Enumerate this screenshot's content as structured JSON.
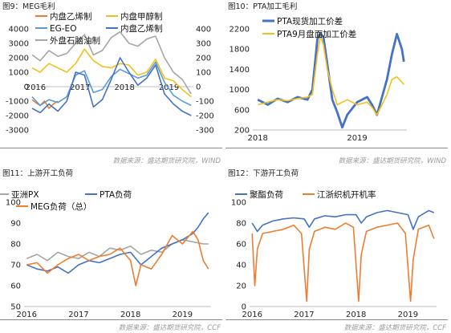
{
  "panels": [
    {
      "title": "图9：MEG毛利",
      "source": "数据来源：盛达期货研究院，WIND",
      "chart_data": {
        "type": "line",
        "title": "图9：MEG毛利",
        "x_ticks": [
          "2016",
          "2017",
          "2018",
          "2019"
        ],
        "x_range": [
          2015.92,
          2019.55
        ],
        "ylim": [
          -3000,
          4000
        ],
        "y_ticks": [
          -3000,
          -2000,
          -1000,
          0,
          1000,
          2000,
          3000,
          4000
        ],
        "y2lim": [
          -300,
          400
        ],
        "y2_ticks": [
          -300,
          -200,
          -100,
          0,
          100,
          200,
          300,
          400
        ],
        "grid": false,
        "legend": "top",
        "series": [
          {
            "name": "内盘乙烯制",
            "axis": "left",
            "color": "#ED7D31",
            "x": [
              2015.92,
              2016.0,
              2016.1,
              2016.2,
              2016.3,
              2016.4,
              2016.5
            ],
            "y": [
              -900,
              -1100,
              -1300,
              -1000,
              -1500,
              -1200,
              -1000
            ]
          },
          {
            "name": "内盘甲醇制",
            "axis": "left",
            "color": "#F2C01E",
            "x": [
              2015.92,
              2016.1,
              2016.3,
              2016.5,
              2016.7,
              2016.9,
              2017.1,
              2017.3,
              2017.5,
              2017.7,
              2017.9,
              2018.1,
              2018.3,
              2018.5,
              2018.7,
              2018.9,
              2019.1,
              2019.3,
              2019.5
            ],
            "y": [
              1300,
              1000,
              1600,
              1300,
              1000,
              1600,
              2600,
              1800,
              1400,
              1300,
              1600,
              1500,
              800,
              1000,
              1900,
              600,
              400,
              -200,
              -700
            ]
          },
          {
            "name": "EG-EO",
            "axis": "left",
            "color": "#5B9BD5",
            "x": [
              2015.92,
              2016.1,
              2016.3,
              2016.5,
              2016.7,
              2016.9,
              2017.1,
              2017.3,
              2017.5,
              2017.7,
              2017.9,
              2018.1,
              2018.3,
              2018.5,
              2018.7,
              2018.9,
              2019.1,
              2019.3,
              2019.5
            ],
            "y": [
              -700,
              -1300,
              -900,
              -1100,
              -700,
              800,
              1100,
              -400,
              -200,
              700,
              1200,
              900,
              600,
              800,
              1700,
              300,
              -600,
              -1000,
              -1300
            ]
          },
          {
            "name": "内盘乙烯制",
            "axis": "right",
            "color": "#4472C4",
            "x": [
              2015.92,
              2016.1,
              2016.3,
              2016.5,
              2016.7,
              2016.9,
              2017.1,
              2017.3,
              2017.5,
              2017.7,
              2017.9,
              2018.1,
              2018.3,
              2018.5,
              2018.7,
              2018.9,
              2019.1,
              2019.3,
              2019.5
            ],
            "y": [
              -150,
              -180,
              -120,
              -170,
              -100,
              100,
              80,
              -140,
              -90,
              50,
              200,
              100,
              10,
              60,
              150,
              -50,
              -120,
              -170,
              -200
            ]
          },
          {
            "name": "外盘石脑油制",
            "axis": "right",
            "color": "#A5A5A5",
            "x": [
              2015.92,
              2016.1,
              2016.3,
              2016.5,
              2016.7,
              2016.9,
              2017.1,
              2017.3,
              2017.5,
              2017.7,
              2017.9,
              2018.1,
              2018.3,
              2018.5,
              2018.7,
              2018.9,
              2019.1,
              2019.3,
              2019.5
            ],
            "y": [
              220,
              180,
              250,
              210,
              230,
              300,
              360,
              220,
              250,
              340,
              380,
              300,
              280,
              330,
              350,
              200,
              100,
              50,
              -50
            ]
          }
        ]
      }
    },
    {
      "title": "图10：PTA加工毛利",
      "source": "数据来源：盛达期货研究院，WIND",
      "chart_data": {
        "type": "line",
        "title": "图10：PTA加工毛利",
        "x_ticks": [
          "2018",
          "2019"
        ],
        "x_range": [
          2017.95,
          2019.5
        ],
        "ylim": [
          200,
          2200
        ],
        "y_ticks": [
          200,
          600,
          1000,
          1400,
          1800,
          2200
        ],
        "grid": false,
        "legend": "top",
        "series": [
          {
            "name": "PTA现货加工价差",
            "color": "#4472C4",
            "x": [
              2018.0,
              2018.1,
              2018.2,
              2018.3,
              2018.4,
              2018.5,
              2018.55,
              2018.6,
              2018.63,
              2018.66,
              2018.7,
              2018.75,
              2018.8,
              2018.85,
              2018.9,
              2019.0,
              2019.1,
              2019.15,
              2019.2,
              2019.3,
              2019.35,
              2019.4,
              2019.45,
              2019.47
            ],
            "y": [
              800,
              700,
              820,
              750,
              850,
              800,
              1000,
              2000,
              2100,
              2050,
              1500,
              800,
              550,
              250,
              500,
              750,
              850,
              700,
              500,
              1200,
              1700,
              2100,
              1800,
              1550
            ]
          },
          {
            "name": "PTA9月盘面加工价差",
            "color": "#F2C01E",
            "x": [
              2018.0,
              2018.1,
              2018.2,
              2018.3,
              2018.4,
              2018.5,
              2018.55,
              2018.6,
              2018.63,
              2018.66,
              2018.7,
              2018.75,
              2018.8,
              2018.85,
              2018.9,
              2019.0,
              2019.1,
              2019.15,
              2019.2,
              2019.3,
              2019.35,
              2019.4,
              2019.45,
              2019.47
            ],
            "y": [
              700,
              750,
              800,
              780,
              820,
              850,
              900,
              1700,
              2050,
              1900,
              1400,
              1000,
              700,
              750,
              800,
              700,
              750,
              650,
              500,
              900,
              1200,
              1250,
              1150,
              1100
            ]
          }
        ]
      }
    },
    {
      "title": "图11：上游开工负荷",
      "source": "数据来源：盛达期货研究院，CCF",
      "chart_data": {
        "type": "line",
        "title": "图11：上游开工负荷",
        "x_ticks": [
          "2016",
          "2017",
          "2018",
          "2019"
        ],
        "x_range": [
          2015.95,
          2019.55
        ],
        "ylim": [
          50,
          100
        ],
        "y_ticks": [
          50,
          60,
          70,
          80,
          90,
          100
        ],
        "grid": false,
        "legend": "top",
        "series": [
          {
            "name": "亚洲PX",
            "color": "#A5A5A5",
            "x": [
              2016.0,
              2016.2,
              2016.4,
              2016.6,
              2016.8,
              2017.0,
              2017.2,
              2017.4,
              2017.6,
              2017.8,
              2018.0,
              2018.2,
              2018.4,
              2018.6,
              2018.8,
              2019.0,
              2019.2,
              2019.4,
              2019.5
            ],
            "y": [
              73,
              75,
              72,
              76,
              74,
              73,
              76,
              74,
              78,
              77,
              79,
              75,
              77,
              76,
              80,
              82,
              81,
              80,
              80
            ]
          },
          {
            "name": "PTA负荷",
            "color": "#4472C4",
            "x": [
              2016.0,
              2016.2,
              2016.4,
              2016.6,
              2016.8,
              2017.0,
              2017.2,
              2017.4,
              2017.6,
              2017.8,
              2018.0,
              2018.2,
              2018.4,
              2018.6,
              2018.8,
              2019.0,
              2019.2,
              2019.3,
              2019.4,
              2019.5
            ],
            "y": [
              70,
              68,
              67,
              69,
              66,
              70,
              72,
              71,
              73,
              75,
              76,
              70,
              74,
              78,
              80,
              82,
              85,
              88,
              92,
              95
            ]
          },
          {
            "name": "MEG负荷（总）",
            "color": "#ED7D31",
            "x": [
              2016.0,
              2016.2,
              2016.4,
              2016.6,
              2016.8,
              2017.0,
              2017.2,
              2017.4,
              2017.6,
              2017.8,
              2018.0,
              2018.1,
              2018.2,
              2018.4,
              2018.6,
              2018.8,
              2019.0,
              2019.2,
              2019.3,
              2019.4,
              2019.5
            ],
            "y": [
              70,
              71,
              66,
              70,
              73,
              75,
              72,
              74,
              75,
              78,
              72,
              60,
              70,
              68,
              75,
              84,
              80,
              86,
              82,
              72,
              68
            ]
          }
        ]
      }
    },
    {
      "title": "图12：下游开工负荷",
      "source": "数据来源：盛达期货研究院，CCF",
      "chart_data": {
        "type": "line",
        "title": "图12：下游开工负荷",
        "x_ticks": [
          "2016",
          "2017",
          "2018",
          "2019"
        ],
        "x_range": [
          2015.95,
          2019.55
        ],
        "ylim": [
          0,
          100
        ],
        "y_ticks": [
          0,
          20,
          40,
          60,
          80,
          100
        ],
        "grid": false,
        "legend": "top",
        "series": [
          {
            "name": "聚酯负荷",
            "color": "#4472C4",
            "x": [
              2016.0,
              2016.1,
              2016.2,
              2016.4,
              2016.6,
              2016.8,
              2017.0,
              2017.1,
              2017.2,
              2017.4,
              2017.6,
              2017.8,
              2018.0,
              2018.1,
              2018.2,
              2018.4,
              2018.6,
              2018.8,
              2019.0,
              2019.1,
              2019.2,
              2019.4,
              2019.5
            ],
            "y": [
              80,
              72,
              78,
              82,
              84,
              85,
              84,
              76,
              84,
              87,
              86,
              88,
              88,
              80,
              86,
              90,
              92,
              90,
              88,
              74,
              86,
              92,
              90
            ]
          },
          {
            "name": "江浙织机开机率",
            "color": "#ED7D31",
            "x": [
              2016.0,
              2016.05,
              2016.1,
              2016.2,
              2016.4,
              2016.6,
              2016.8,
              2016.95,
              2017.05,
              2017.1,
              2017.2,
              2017.4,
              2017.6,
              2017.8,
              2017.95,
              2018.05,
              2018.1,
              2018.2,
              2018.4,
              2018.6,
              2018.8,
              2018.95,
              2019.05,
              2019.1,
              2019.2,
              2019.4,
              2019.5
            ],
            "y": [
              70,
              20,
              55,
              70,
              72,
              74,
              78,
              70,
              5,
              55,
              72,
              76,
              74,
              80,
              76,
              5,
              50,
              72,
              76,
              78,
              80,
              70,
              5,
              45,
              74,
              78,
              65
            ]
          }
        ]
      }
    }
  ]
}
